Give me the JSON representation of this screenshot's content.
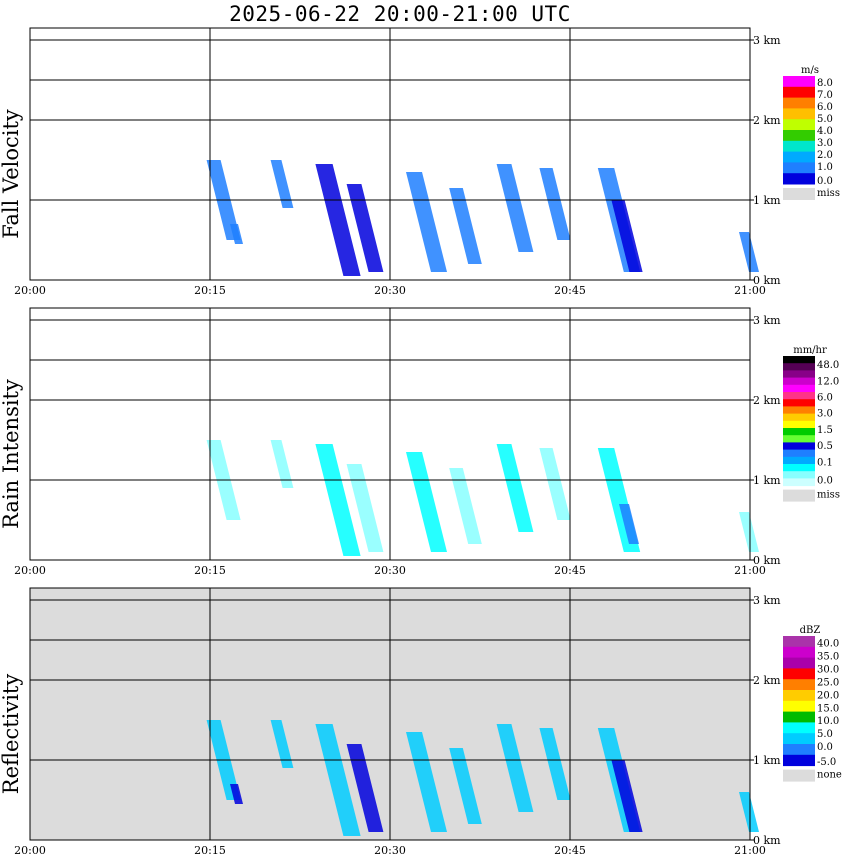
{
  "title": "2025-06-22  20:00-21:00 UTC",
  "chart_data": [
    {
      "type": "heatmap",
      "ylabel": "Fall Velocity",
      "x_ticks": [
        "20:00",
        "20:15",
        "20:30",
        "20:45",
        "21:00"
      ],
      "y_ticks": [
        "0 km",
        "1 km",
        "2 km",
        "3 km"
      ],
      "xlim": [
        "20:00",
        "21:00"
      ],
      "ylim_km": [
        0,
        3
      ],
      "grid": true,
      "colorbar": {
        "unit": "m/s",
        "labels": [
          "8.0",
          "7.0",
          "6.0",
          "5.0",
          "4.0",
          "3.0",
          "2.0",
          "1.0",
          "0.0"
        ],
        "colors": [
          "#ff00ff",
          "#ff0000",
          "#ff7f00",
          "#ffbf00",
          "#bfff00",
          "#33cc00",
          "#00e6cc",
          "#00aaff",
          "#1f7fff",
          "#0000dd"
        ],
        "missing_label": "miss",
        "missing_color": "#dcdcdc"
      },
      "echoes": [
        {
          "time_min": 15.3,
          "top_km": 1.5,
          "bottom_km": 0.5,
          "color": "#1f7fff"
        },
        {
          "time_min": 17.0,
          "top_km": 0.7,
          "bottom_km": 0.45,
          "color": "#1f7fff"
        },
        {
          "time_min": 20.5,
          "top_km": 1.5,
          "bottom_km": 0.9,
          "color": "#1f7fff"
        },
        {
          "time_min": 24.5,
          "top_km": 1.45,
          "bottom_km": 0.05,
          "color": "#0000dd"
        },
        {
          "time_min": 27.0,
          "top_km": 1.2,
          "bottom_km": 0.1,
          "color": "#0000dd"
        },
        {
          "time_min": 32.0,
          "top_km": 1.35,
          "bottom_km": 0.1,
          "color": "#1f7fff"
        },
        {
          "time_min": 35.5,
          "top_km": 1.15,
          "bottom_km": 0.2,
          "color": "#1f7fff"
        },
        {
          "time_min": 39.5,
          "top_km": 1.45,
          "bottom_km": 0.35,
          "color": "#1f7fff"
        },
        {
          "time_min": 43.0,
          "top_km": 1.4,
          "bottom_km": 0.5,
          "color": "#1f7fff"
        },
        {
          "time_min": 48.0,
          "top_km": 1.4,
          "bottom_km": 0.1,
          "color": "#1f7fff"
        },
        {
          "time_min": 49.0,
          "top_km": 1.0,
          "bottom_km": 0.1,
          "color": "#0000dd"
        },
        {
          "time_min": 59.5,
          "top_km": 0.6,
          "bottom_km": 0.1,
          "color": "#1f7fff"
        }
      ]
    },
    {
      "type": "heatmap",
      "ylabel": "Rain Intensity",
      "x_ticks": [
        "20:00",
        "20:15",
        "20:30",
        "20:45",
        "21:00"
      ],
      "y_ticks": [
        "0 km",
        "1 km",
        "2 km",
        "3 km"
      ],
      "xlim": [
        "20:00",
        "21:00"
      ],
      "ylim_km": [
        0,
        3
      ],
      "grid": true,
      "colorbar": {
        "unit": "mm/hr",
        "labels": [
          "48.0",
          "12.0",
          "6.0",
          "3.0",
          "1.5",
          "0.5",
          "0.1",
          "0.0"
        ],
        "colors": [
          "#000000",
          "#550055",
          "#880088",
          "#cc00cc",
          "#ff00ff",
          "#ff3388",
          "#ff0000",
          "#ff8000",
          "#ffcc00",
          "#ffff00",
          "#00cc00",
          "#66ff33",
          "#0000dd",
          "#1f7fff",
          "#00aaff",
          "#00ffff",
          "#88ffff",
          "#ccffff"
        ],
        "missing_label": "miss",
        "missing_color": "#dcdcdc"
      },
      "echoes": [
        {
          "time_min": 15.3,
          "top_km": 1.5,
          "bottom_km": 0.5,
          "color": "#88ffff"
        },
        {
          "time_min": 20.5,
          "top_km": 1.5,
          "bottom_km": 0.9,
          "color": "#88ffff"
        },
        {
          "time_min": 24.5,
          "top_km": 1.45,
          "bottom_km": 0.05,
          "color": "#00ffff"
        },
        {
          "time_min": 27.0,
          "top_km": 1.2,
          "bottom_km": 0.1,
          "color": "#88ffff"
        },
        {
          "time_min": 32.0,
          "top_km": 1.35,
          "bottom_km": 0.1,
          "color": "#00ffff"
        },
        {
          "time_min": 35.5,
          "top_km": 1.15,
          "bottom_km": 0.2,
          "color": "#88ffff"
        },
        {
          "time_min": 39.5,
          "top_km": 1.45,
          "bottom_km": 0.35,
          "color": "#00ffff"
        },
        {
          "time_min": 43.0,
          "top_km": 1.4,
          "bottom_km": 0.5,
          "color": "#88ffff"
        },
        {
          "time_min": 48.0,
          "top_km": 1.4,
          "bottom_km": 0.1,
          "color": "#00ffff"
        },
        {
          "time_min": 49.5,
          "top_km": 0.7,
          "bottom_km": 0.2,
          "color": "#1f7fff"
        },
        {
          "time_min": 59.5,
          "top_km": 0.6,
          "bottom_km": 0.1,
          "color": "#88ffff"
        }
      ]
    },
    {
      "type": "heatmap",
      "ylabel": "Reflectivity",
      "x_ticks": [
        "20:00",
        "20:15",
        "20:30",
        "20:45",
        "21:00"
      ],
      "y_ticks": [
        "0 km",
        "1 km",
        "2 km",
        "3 km"
      ],
      "xlim": [
        "20:00",
        "21:00"
      ],
      "ylim_km": [
        0,
        3
      ],
      "grid": true,
      "background": "#dcdcdc",
      "colorbar": {
        "unit": "dBZ",
        "labels": [
          "40.0",
          "35.0",
          "30.0",
          "25.0",
          "20.0",
          "15.0",
          "10.0",
          "5.0",
          "0.0",
          "-5.0"
        ],
        "colors": [
          "#aa33aa",
          "#cc00cc",
          "#aa00aa",
          "#ff0000",
          "#ff7f00",
          "#ffcc00",
          "#ffff00",
          "#00bb00",
          "#00ffff",
          "#00ccff",
          "#1f7fff",
          "#0000dd"
        ],
        "missing_label": "none",
        "missing_color": "#dcdcdc"
      },
      "echoes": [
        {
          "time_min": 15.3,
          "top_km": 1.5,
          "bottom_km": 0.5,
          "color": "#00ccff"
        },
        {
          "time_min": 17.0,
          "top_km": 0.7,
          "bottom_km": 0.45,
          "color": "#0000dd"
        },
        {
          "time_min": 20.5,
          "top_km": 1.5,
          "bottom_km": 0.9,
          "color": "#00ccff"
        },
        {
          "time_min": 24.5,
          "top_km": 1.45,
          "bottom_km": 0.05,
          "color": "#00ccff"
        },
        {
          "time_min": 27.0,
          "top_km": 1.2,
          "bottom_km": 0.1,
          "color": "#0000dd"
        },
        {
          "time_min": 32.0,
          "top_km": 1.35,
          "bottom_km": 0.1,
          "color": "#00ccff"
        },
        {
          "time_min": 35.5,
          "top_km": 1.15,
          "bottom_km": 0.2,
          "color": "#00ccff"
        },
        {
          "time_min": 39.5,
          "top_km": 1.45,
          "bottom_km": 0.35,
          "color": "#00ccff"
        },
        {
          "time_min": 43.0,
          "top_km": 1.4,
          "bottom_km": 0.5,
          "color": "#00ccff"
        },
        {
          "time_min": 48.0,
          "top_km": 1.4,
          "bottom_km": 0.1,
          "color": "#00ccff"
        },
        {
          "time_min": 49.0,
          "top_km": 1.0,
          "bottom_km": 0.1,
          "color": "#0000dd"
        },
        {
          "time_min": 59.5,
          "top_km": 0.6,
          "bottom_km": 0.1,
          "color": "#00ccff"
        }
      ]
    }
  ]
}
